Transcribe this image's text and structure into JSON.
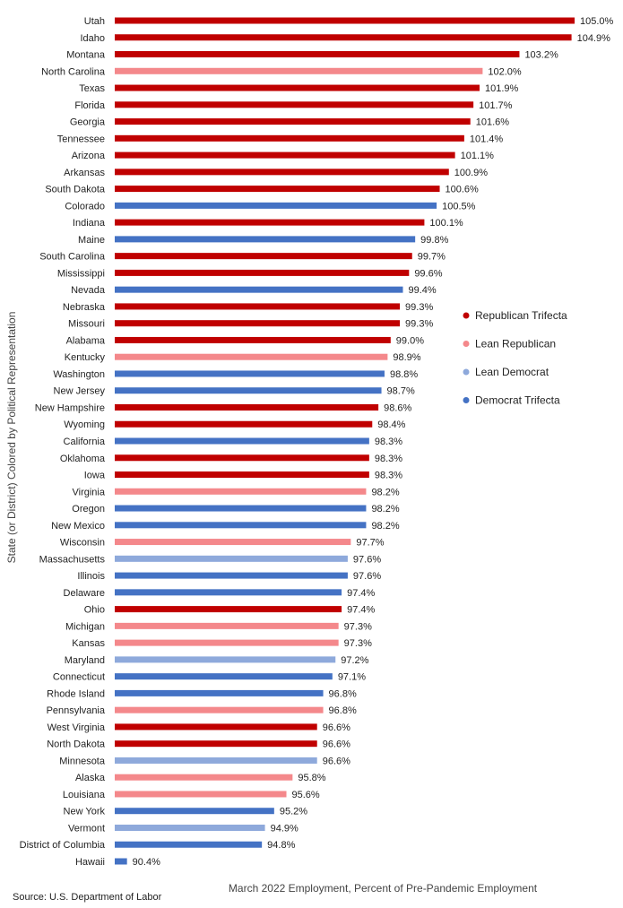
{
  "chart_data": {
    "type": "bar",
    "orientation": "horizontal",
    "xlabel": "March 2022 Employment, Percent of Pre-Pandemic Employment",
    "ylabel": "State (or District) Colored by Political Representation",
    "source": "Source: U.S. Department of Labor",
    "xlim": [
      90.0,
      105.0
    ],
    "grid": false,
    "legend_position": "right",
    "legend": [
      {
        "key": "rep_trifecta",
        "label": "Republican Trifecta",
        "color": "#C00000"
      },
      {
        "key": "lean_rep",
        "label": "Lean Republican",
        "color": "#F4888B"
      },
      {
        "key": "lean_dem",
        "label": "Lean Democrat",
        "color": "#8EA9DB"
      },
      {
        "key": "dem_trifecta",
        "label": "Democrat Trifecta",
        "color": "#4472C4"
      }
    ],
    "bars": [
      {
        "category": "Utah",
        "value": 105.0,
        "label": "105.0%",
        "group": "rep_trifecta"
      },
      {
        "category": "Idaho",
        "value": 104.9,
        "label": "104.9%",
        "group": "rep_trifecta"
      },
      {
        "category": "Montana",
        "value": 103.2,
        "label": "103.2%",
        "group": "rep_trifecta"
      },
      {
        "category": "North Carolina",
        "value": 102.0,
        "label": "102.0%",
        "group": "lean_rep"
      },
      {
        "category": "Texas",
        "value": 101.9,
        "label": "101.9%",
        "group": "rep_trifecta"
      },
      {
        "category": "Florida",
        "value": 101.7,
        "label": "101.7%",
        "group": "rep_trifecta"
      },
      {
        "category": "Georgia",
        "value": 101.6,
        "label": "101.6%",
        "group": "rep_trifecta"
      },
      {
        "category": "Tennessee",
        "value": 101.4,
        "label": "101.4%",
        "group": "rep_trifecta"
      },
      {
        "category": "Arizona",
        "value": 101.1,
        "label": "101.1%",
        "group": "rep_trifecta"
      },
      {
        "category": "Arkansas",
        "value": 100.9,
        "label": "100.9%",
        "group": "rep_trifecta"
      },
      {
        "category": "South Dakota",
        "value": 100.6,
        "label": "100.6%",
        "group": "rep_trifecta"
      },
      {
        "category": "Colorado",
        "value": 100.5,
        "label": "100.5%",
        "group": "dem_trifecta"
      },
      {
        "category": "Indiana",
        "value": 100.1,
        "label": "100.1%",
        "group": "rep_trifecta"
      },
      {
        "category": "Maine",
        "value": 99.8,
        "label": "99.8%",
        "group": "dem_trifecta"
      },
      {
        "category": "South Carolina",
        "value": 99.7,
        "label": "99.7%",
        "group": "rep_trifecta"
      },
      {
        "category": "Mississippi",
        "value": 99.6,
        "label": "99.6%",
        "group": "rep_trifecta"
      },
      {
        "category": "Nevada",
        "value": 99.4,
        "label": "99.4%",
        "group": "dem_trifecta"
      },
      {
        "category": "Nebraska",
        "value": 99.3,
        "label": "99.3%",
        "group": "rep_trifecta"
      },
      {
        "category": "Missouri",
        "value": 99.3,
        "label": "99.3%",
        "group": "rep_trifecta"
      },
      {
        "category": "Alabama",
        "value": 99.0,
        "label": "99.0%",
        "group": "rep_trifecta"
      },
      {
        "category": "Kentucky",
        "value": 98.9,
        "label": "98.9%",
        "group": "lean_rep"
      },
      {
        "category": "Washington",
        "value": 98.8,
        "label": "98.8%",
        "group": "dem_trifecta"
      },
      {
        "category": "New Jersey",
        "value": 98.7,
        "label": "98.7%",
        "group": "dem_trifecta"
      },
      {
        "category": "New Hampshire",
        "value": 98.6,
        "label": "98.6%",
        "group": "rep_trifecta"
      },
      {
        "category": "Wyoming",
        "value": 98.4,
        "label": "98.4%",
        "group": "rep_trifecta"
      },
      {
        "category": "California",
        "value": 98.3,
        "label": "98.3%",
        "group": "dem_trifecta"
      },
      {
        "category": "Oklahoma",
        "value": 98.3,
        "label": "98.3%",
        "group": "rep_trifecta"
      },
      {
        "category": "Iowa",
        "value": 98.3,
        "label": "98.3%",
        "group": "rep_trifecta"
      },
      {
        "category": "Virginia",
        "value": 98.2,
        "label": "98.2%",
        "group": "lean_rep"
      },
      {
        "category": "Oregon",
        "value": 98.2,
        "label": "98.2%",
        "group": "dem_trifecta"
      },
      {
        "category": "New Mexico",
        "value": 98.2,
        "label": "98.2%",
        "group": "dem_trifecta"
      },
      {
        "category": "Wisconsin",
        "value": 97.7,
        "label": "97.7%",
        "group": "lean_rep"
      },
      {
        "category": "Massachusetts",
        "value": 97.6,
        "label": "97.6%",
        "group": "lean_dem"
      },
      {
        "category": "Illinois",
        "value": 97.6,
        "label": "97.6%",
        "group": "dem_trifecta"
      },
      {
        "category": "Delaware",
        "value": 97.4,
        "label": "97.4%",
        "group": "dem_trifecta"
      },
      {
        "category": "Ohio",
        "value": 97.4,
        "label": "97.4%",
        "group": "rep_trifecta"
      },
      {
        "category": "Michigan",
        "value": 97.3,
        "label": "97.3%",
        "group": "lean_rep"
      },
      {
        "category": "Kansas",
        "value": 97.3,
        "label": "97.3%",
        "group": "lean_rep"
      },
      {
        "category": "Maryland",
        "value": 97.2,
        "label": "97.2%",
        "group": "lean_dem"
      },
      {
        "category": "Connecticut",
        "value": 97.1,
        "label": "97.1%",
        "group": "dem_trifecta"
      },
      {
        "category": "Rhode Island",
        "value": 96.8,
        "label": "96.8%",
        "group": "dem_trifecta"
      },
      {
        "category": "Pennsylvania",
        "value": 96.8,
        "label": "96.8%",
        "group": "lean_rep"
      },
      {
        "category": "West Virginia",
        "value": 96.6,
        "label": "96.6%",
        "group": "rep_trifecta"
      },
      {
        "category": "North Dakota",
        "value": 96.6,
        "label": "96.6%",
        "group": "rep_trifecta"
      },
      {
        "category": "Minnesota",
        "value": 96.6,
        "label": "96.6%",
        "group": "lean_dem"
      },
      {
        "category": "Alaska",
        "value": 95.8,
        "label": "95.8%",
        "group": "lean_rep"
      },
      {
        "category": "Louisiana",
        "value": 95.6,
        "label": "95.6%",
        "group": "lean_rep"
      },
      {
        "category": "New York",
        "value": 95.2,
        "label": "95.2%",
        "group": "dem_trifecta"
      },
      {
        "category": "Vermont",
        "value": 94.9,
        "label": "94.9%",
        "group": "lean_dem"
      },
      {
        "category": "District of Columbia",
        "value": 94.8,
        "label": "94.8%",
        "group": "dem_trifecta"
      },
      {
        "category": "Hawaii",
        "value": 90.4,
        "label": "90.4%",
        "group": "dem_trifecta"
      }
    ]
  }
}
